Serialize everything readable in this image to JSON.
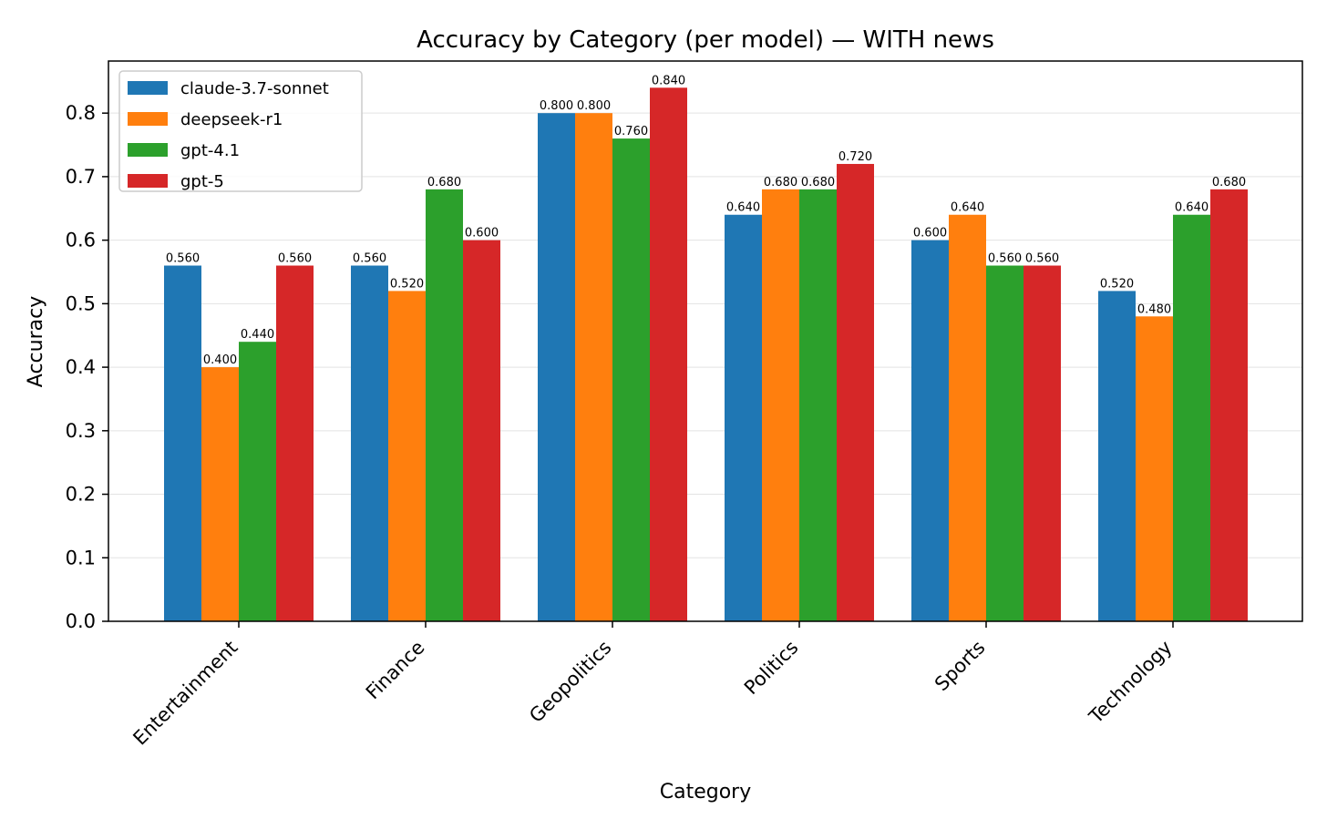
{
  "chart_data": {
    "type": "bar",
    "title": "Accuracy by Category (per model) — WITH news",
    "xlabel": "Category",
    "ylabel": "Accuracy",
    "categories": [
      "Entertainment",
      "Finance",
      "Geopolitics",
      "Politics",
      "Sports",
      "Technology"
    ],
    "series": [
      {
        "name": "claude-3.7-sonnet",
        "color": "#1f77b4",
        "values": [
          0.56,
          0.56,
          0.8,
          0.64,
          0.6,
          0.52
        ],
        "labels": [
          "0.560",
          "0.560",
          "0.800",
          "0.640",
          "0.600",
          "0.520"
        ]
      },
      {
        "name": "deepseek-r1",
        "color": "#ff7f0e",
        "values": [
          0.4,
          0.52,
          0.8,
          0.68,
          0.64,
          0.48
        ],
        "labels": [
          "0.400",
          "0.520",
          "0.800",
          "0.680",
          "0.640",
          "0.480"
        ]
      },
      {
        "name": "gpt-4.1",
        "color": "#2ca02c",
        "values": [
          0.44,
          0.68,
          0.76,
          0.68,
          0.56,
          0.64
        ],
        "labels": [
          "0.440",
          "0.680",
          "0.760",
          "0.680",
          "0.560",
          "0.640"
        ]
      },
      {
        "name": "gpt-5",
        "color": "#d62728",
        "values": [
          0.56,
          0.6,
          0.84,
          0.72,
          0.56,
          0.68
        ],
        "labels": [
          "0.560",
          "0.600",
          "0.840",
          "0.720",
          "0.560",
          "0.680"
        ]
      }
    ],
    "yticks": [
      "0.0",
      "0.1",
      "0.2",
      "0.3",
      "0.4",
      "0.5",
      "0.6",
      "0.7",
      "0.8"
    ],
    "ylim": [
      0,
      0.882
    ],
    "grid": "y",
    "legend_position": "top-left"
  }
}
